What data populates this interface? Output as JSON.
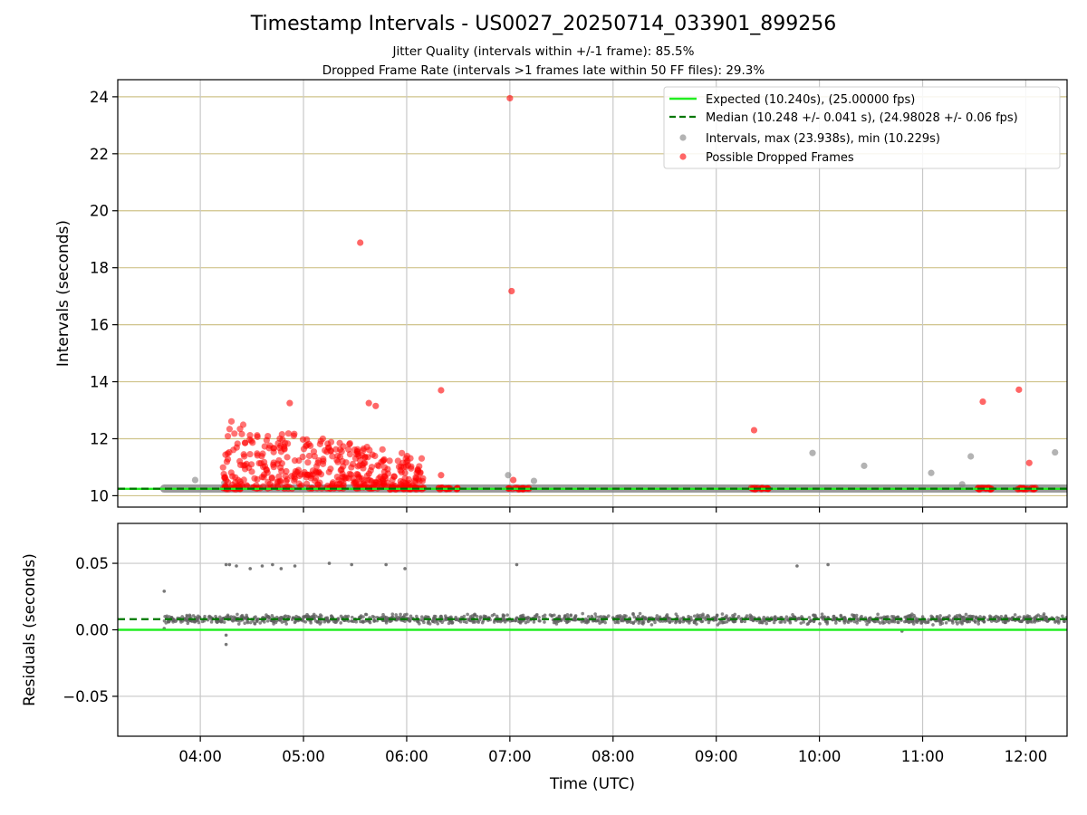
{
  "chart_data": [
    {
      "type": "scatter",
      "title": "Timestamp Intervals - US0027_20250714_033901_899256",
      "subtitles": [
        "Jitter Quality (intervals within +/-1 frame): 85.5%",
        "Dropped Frame Rate (intervals >1 frames late within 50 FF files): 29.3%"
      ],
      "xlabel": "Time (UTC)",
      "ylabel": "Intervals (seconds)",
      "xlim": [
        "03:12",
        "12:24"
      ],
      "ylim": [
        9.6,
        24.6
      ],
      "yticks": [
        10,
        12,
        14,
        16,
        18,
        20,
        22,
        24
      ],
      "xticks": [
        "04:00",
        "05:00",
        "06:00",
        "07:00",
        "08:00",
        "09:00",
        "10:00",
        "11:00",
        "12:00"
      ],
      "grid": true,
      "legend_position": "top-right",
      "lines": [
        {
          "name": "Expected (10.240s), (25.00000 fps)",
          "value": 10.24,
          "color": "#22ee22",
          "style": "solid"
        },
        {
          "name": "Median (10.248 +/- 0.041 s), (24.98028 +/- 0.06 fps)",
          "value": 10.248,
          "color": "#007700",
          "style": "dashed"
        }
      ],
      "series": [
        {
          "name": "Intervals, max (23.938s), min (10.229s)",
          "color": "#808080",
          "baseline": {
            "y": 10.25,
            "x_start": "03:39",
            "x_end": "12:24"
          },
          "points": [
            [
              "03:57",
              10.55
            ],
            [
              "04:14",
              10.45
            ],
            [
              "04:15",
              10.3
            ],
            [
              "06:59",
              10.72
            ],
            [
              "07:14",
              10.52
            ],
            [
              "09:56",
              11.5
            ],
            [
              "10:26",
              11.05
            ],
            [
              "11:05",
              10.8
            ],
            [
              "11:23",
              10.4
            ],
            [
              "11:28",
              11.38
            ],
            [
              "12:17",
              11.52
            ]
          ]
        },
        {
          "name": "Possible Dropped Frames",
          "color": "#ff0000",
          "clusters": [
            {
              "start": "04:13",
              "end": "06:10",
              "ymin": 10.25,
              "ymax": 12.7,
              "count": 420
            },
            {
              "start": "04:13",
              "end": "04:24",
              "y": 10.25,
              "count": 15
            },
            {
              "start": "05:50",
              "end": "06:10",
              "y": 10.25,
              "count": 25
            },
            {
              "start": "06:18",
              "end": "06:30",
              "y": 10.25,
              "count": 18
            },
            {
              "start": "06:59",
              "end": "07:12",
              "y": 10.25,
              "count": 20
            },
            {
              "start": "09:20",
              "end": "09:31",
              "y": 10.25,
              "count": 18
            },
            {
              "start": "11:32",
              "end": "11:43",
              "y": 10.25,
              "count": 18
            },
            {
              "start": "11:53",
              "end": "12:06",
              "y": 10.25,
              "count": 18
            }
          ],
          "points": [
            [
              "04:52",
              13.25
            ],
            [
              "05:33",
              18.88
            ],
            [
              "05:38",
              13.25
            ],
            [
              "05:42",
              13.15
            ],
            [
              "06:20",
              13.7
            ],
            [
              "06:20",
              10.72
            ],
            [
              "07:00",
              23.95
            ],
            [
              "07:01",
              17.18
            ],
            [
              "07:02",
              10.55
            ],
            [
              "09:22",
              12.3
            ],
            [
              "11:35",
              13.3
            ],
            [
              "11:56",
              13.72
            ],
            [
              "12:02",
              11.15
            ]
          ]
        }
      ]
    },
    {
      "type": "scatter",
      "xlabel": "Time (UTC)",
      "ylabel": "Residuals (seconds)",
      "xlim": [
        "03:12",
        "12:24"
      ],
      "ylim": [
        -0.08,
        0.08
      ],
      "yticks": [
        -0.05,
        0.0,
        0.05
      ],
      "ytick_labels": [
        "−0.05",
        "0.00",
        "0.05"
      ],
      "grid": true,
      "lines": [
        {
          "value": 0.0,
          "color": "#22ee22",
          "style": "solid"
        },
        {
          "value": 0.008,
          "color": "#007700",
          "style": "dashed"
        }
      ],
      "series": [
        {
          "color": "#606060",
          "band": {
            "start": "03:39",
            "end": "12:24",
            "center": 0.008,
            "spread": 0.0025,
            "count": 1400
          },
          "points": [
            [
              "03:39",
              0.029
            ],
            [
              "04:15",
              0.049
            ],
            [
              "04:17",
              0.049
            ],
            [
              "04:21",
              0.048
            ],
            [
              "04:29",
              0.046
            ],
            [
              "04:36",
              0.048
            ],
            [
              "04:42",
              0.049
            ],
            [
              "04:47",
              0.046
            ],
            [
              "04:55",
              0.048
            ],
            [
              "05:15",
              0.05
            ],
            [
              "05:28",
              0.049
            ],
            [
              "05:48",
              0.049
            ],
            [
              "05:59",
              0.046
            ],
            [
              "07:04",
              0.049
            ],
            [
              "09:47",
              0.048
            ],
            [
              "10:05",
              0.049
            ],
            [
              "04:15",
              -0.004
            ],
            [
              "04:15",
              -0.011
            ],
            [
              "03:39",
              0.001
            ],
            [
              "10:48",
              -0.001
            ]
          ]
        }
      ]
    }
  ]
}
